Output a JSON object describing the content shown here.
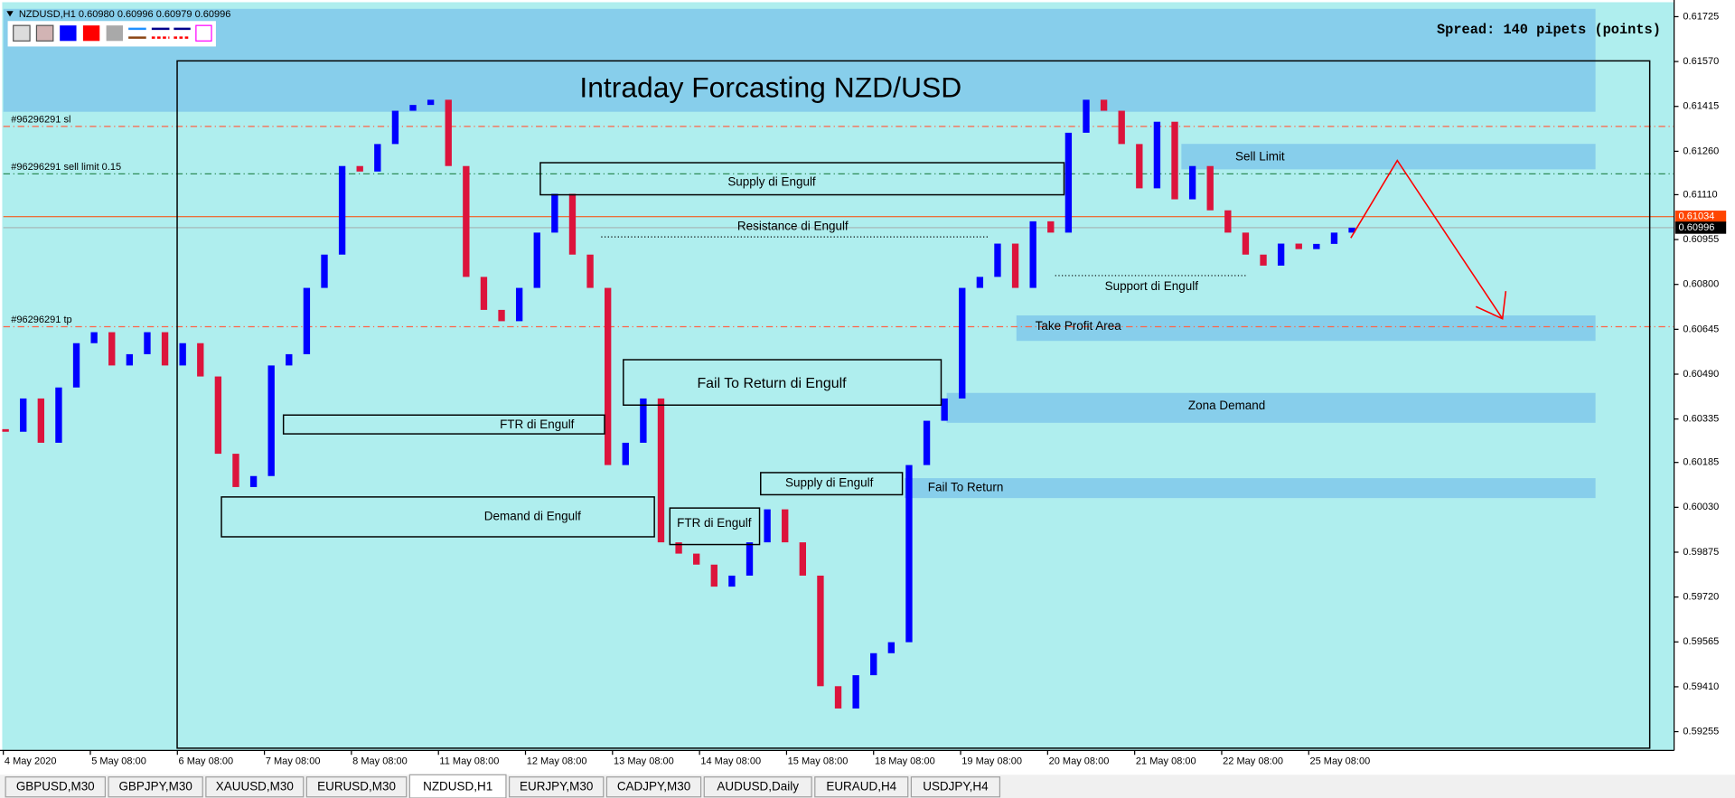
{
  "chart_data": {
    "type": "candlestick",
    "title": "Intraday Forcasting NZD/USD",
    "symbol_info": "NZDUSD,H1  0.60980 0.60996 0.60979 0.60996",
    "spread": "Spread: 140 pipets (points)",
    "up_color": "#0000ff",
    "down_color": "#dc143c",
    "open": [
      0.603,
      0.60291,
      0.60406,
      0.60253,
      0.60444,
      0.60597,
      0.60635,
      0.6052,
      0.60559,
      0.60635,
      0.6052,
      0.60597,
      0.60482,
      0.60215,
      0.601,
      0.60138,
      0.6052,
      0.60559,
      0.60788,
      0.60903,
      0.61209,
      0.6119,
      0.61285,
      0.614,
      0.6142,
      0.61438,
      0.61209,
      0.60826,
      0.60712,
      0.60673,
      0.60788,
      0.60979,
      0.61113,
      0.60903,
      0.60788,
      0.60176,
      0.60253,
      0.60406,
      0.59909,
      0.5987,
      0.59832,
      0.59756,
      0.59794,
      0.59909,
      0.60023,
      0.59909,
      0.59794,
      0.59412,
      0.59335,
      0.5945,
      0.59526,
      0.59564,
      0.60176,
      0.60329,
      0.60406,
      0.60788,
      0.60826,
      0.60941,
      0.60788,
      0.61018,
      0.60979,
      0.61324,
      0.61438,
      0.614,
      0.61285,
      0.61132,
      0.61362,
      0.61094,
      0.61209,
      0.61056,
      0.60979,
      0.60903,
      0.60865,
      0.60941,
      0.60922,
      0.6094,
      0.60979
    ],
    "close": [
      0.60291,
      0.60406,
      0.60253,
      0.60444,
      0.60597,
      0.60635,
      0.6052,
      0.60559,
      0.60635,
      0.6052,
      0.60597,
      0.60482,
      0.60215,
      0.601,
      0.60138,
      0.6052,
      0.60559,
      0.60788,
      0.60903,
      0.61209,
      0.6119,
      0.61285,
      0.614,
      0.6142,
      0.61438,
      0.61209,
      0.60826,
      0.60712,
      0.60673,
      0.60788,
      0.60979,
      0.61113,
      0.60903,
      0.60788,
      0.60176,
      0.60253,
      0.60406,
      0.59909,
      0.5987,
      0.59832,
      0.59756,
      0.59794,
      0.59909,
      0.60023,
      0.59909,
      0.59794,
      0.59412,
      0.59335,
      0.5945,
      0.59526,
      0.59564,
      0.60176,
      0.60329,
      0.60406,
      0.60788,
      0.60826,
      0.60941,
      0.60788,
      0.61018,
      0.60979,
      0.61324,
      0.61438,
      0.614,
      0.61285,
      0.61132,
      0.61362,
      0.61094,
      0.61209,
      0.61056,
      0.60979,
      0.60903,
      0.60865,
      0.60941,
      0.60922,
      0.6094,
      0.60979,
      0.60996
    ],
    "ylim": [
      0.59194,
      0.61752
    ],
    "yticks": [
      0.61725,
      {
        "value": 0.6157,
        "label": "0.61570"
      },
      0.61415,
      {
        "value": 0.6126,
        "label": "0.61260"
      },
      {
        "value": 0.6111,
        "label": "0.61110"
      },
      0.60955,
      {
        "value": 0.608,
        "label": "0.60800"
      },
      0.60645,
      {
        "value": 0.6049,
        "label": "0.60490"
      },
      0.60335,
      0.60185,
      {
        "value": 0.6003,
        "label": "0.60030"
      },
      0.59875,
      {
        "value": 0.5972,
        "label": "0.59720"
      },
      0.59565,
      {
        "value": 0.5941,
        "label": "0.59410"
      },
      0.59255
    ],
    "xticks": [
      "4 May 2020",
      "5 May 08:00",
      "6 May 08:00",
      "7 May 08:00",
      "8 May 08:00",
      "11 May 08:00",
      "12 May 08:00",
      "13 May 08:00",
      "14 May 08:00",
      "15 May 08:00",
      "18 May 08:00",
      "19 May 08:00",
      "20 May 08:00",
      "21 May 08:00",
      "22 May 08:00",
      "25 May 08:00"
    ],
    "price_labels": [
      {
        "value": 0.61034,
        "color": "#ff4500"
      },
      {
        "value": 0.60996,
        "color": "#000000"
      }
    ],
    "order_lines": [
      {
        "label": "#96296291 sl",
        "value": 0.61346,
        "color": "#ff6347"
      },
      {
        "label": "#96296291 sell limit 0.15",
        "value": 0.61182,
        "color": "#2e8b57"
      },
      {
        "label": "#96296291 tp",
        "value": 0.60654,
        "color": "#ff6347"
      }
    ],
    "annotations": [
      "Sell Limit",
      "Take Profit Area",
      "Zona Demand",
      "Fail To Return",
      "Supply di Engulf",
      "Resistance di Engulf",
      "Support di Engulf",
      "Fail To Return di Engulf",
      "FTR di Engulf",
      "Demand di Engulf",
      "Supply di Engulf",
      "FTR di Engulf"
    ]
  },
  "tabs": [
    "GBPUSD,M30",
    "GBPJPY,M30",
    "XAUUSD,M30",
    "EURUSD,M30",
    "NZDUSD,H1",
    "EURJPY,M30",
    "CADJPY,M30",
    "AUDUSD,Daily",
    "EURAUD,H4",
    "USDJPY,H4"
  ],
  "active_tab": 4
}
